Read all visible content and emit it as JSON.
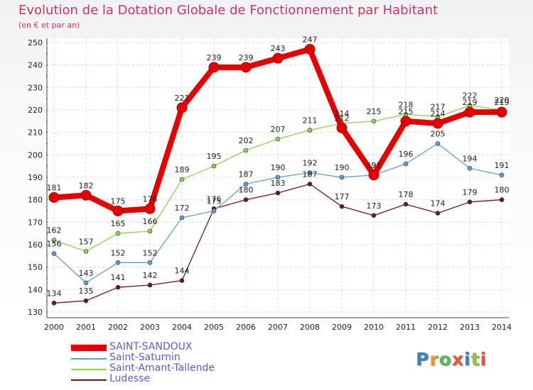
{
  "header": {
    "title": "Evolution de la Dotation Globale de Fonctionnement par Habitant",
    "subtitle": "(en € et par an)"
  },
  "logo": {
    "text": "Proxiti",
    "letter_colors": [
      "#3b82c4",
      "#e8962e",
      "#5cb85c",
      "#e05a2e",
      "#3b82c4",
      "#8fc43f",
      "#e05a2e"
    ]
  },
  "chart_data": {
    "type": "line",
    "title": "Evolution de la Dotation Globale de Fonctionnement par Habitant",
    "subtitle": "(en € et par an)",
    "xlabel": "",
    "ylabel": "",
    "x": [
      "2000",
      "2001",
      "2002",
      "2003",
      "2004",
      "2005",
      "2006",
      "2007",
      "2008",
      "2009",
      "2010",
      "2011",
      "2012",
      "2013",
      "2014"
    ],
    "ylim": [
      130,
      250
    ],
    "yticks": [
      130,
      140,
      150,
      160,
      170,
      180,
      190,
      200,
      210,
      220,
      230,
      240,
      250
    ],
    "grid": true,
    "legend_position": "bottom-left",
    "series": [
      {
        "name": "SAINT-SANDOUX",
        "color": "#e60000",
        "values": [
          181,
          182,
          175,
          176,
          221,
          239,
          239,
          243,
          247,
          212,
          191,
          215,
          214,
          219,
          219
        ]
      },
      {
        "name": "Saint-Saturnin",
        "color": "#5f9ed1",
        "values": [
          156,
          143,
          152,
          152,
          172,
          175,
          187,
          190,
          192,
          190,
          191,
          196,
          205,
          194,
          191
        ]
      },
      {
        "name": "Saint-Amant-Tallende",
        "color": "#8fd14f",
        "values": [
          162,
          157,
          165,
          166,
          189,
          195,
          202,
          207,
          211,
          214,
          215,
          218,
          217,
          222,
          220
        ]
      },
      {
        "name": "Ludesse",
        "color": "#6b1a22",
        "values": [
          134,
          135,
          141,
          142,
          144,
          176,
          180,
          183,
          187,
          177,
          173,
          178,
          174,
          179,
          180
        ]
      }
    ]
  }
}
